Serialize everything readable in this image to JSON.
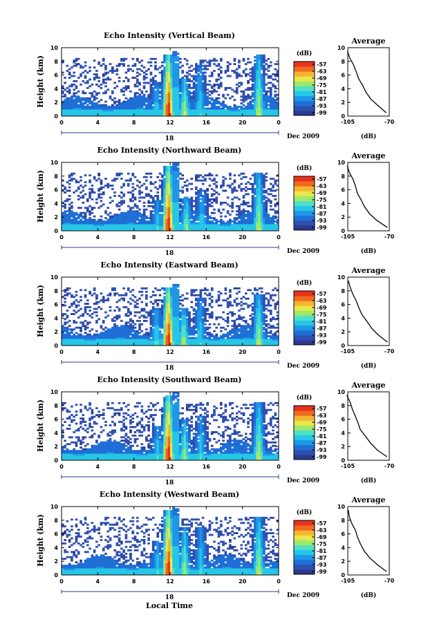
{
  "colors": {
    "scale": [
      "#2b3990",
      "#2f4fb0",
      "#1f6fd6",
      "#1f96e6",
      "#26c6e6",
      "#4fe0c8",
      "#9fe86a",
      "#e8e84a",
      "#f7b430",
      "#f06a20",
      "#e8321e"
    ],
    "background": "#ffffff",
    "axis": "#000000",
    "timeline": "#2b3990"
  },
  "chart_data": [
    {
      "type": "heatmap",
      "title": "Echo Intensity (Vertical Beam)",
      "ylabel": "Height (km)",
      "xlim": [
        0,
        24
      ],
      "ylim": [
        0,
        10
      ],
      "xticks": [
        "0",
        "4",
        "8",
        "12",
        "16",
        "20",
        "0"
      ],
      "yticks": [
        "0",
        "2",
        "4",
        "6",
        "8",
        "10"
      ],
      "date_label": "Dec 2009",
      "day_label": "18",
      "colorbar": {
        "unit": "(dB)",
        "ticks": [
          "-57",
          "-63",
          "-69",
          "-75",
          "-81",
          "-87",
          "-93",
          "-99"
        ]
      },
      "average": {
        "title": "Average",
        "xlabel": "(dB)",
        "xlim": [
          -105,
          -70
        ],
        "xticks": [
          "-105",
          "-70"
        ],
        "yticks": [
          "0",
          "2",
          "4",
          "6",
          "8",
          "10"
        ],
        "profile": [
          [
            0,
            -72
          ],
          [
            1,
            -79
          ],
          [
            2,
            -86
          ],
          [
            3,
            -90
          ],
          [
            4,
            -93
          ],
          [
            5,
            -96
          ],
          [
            6,
            -98
          ],
          [
            7,
            -100
          ],
          [
            8,
            -103
          ],
          [
            9,
            -105
          ]
        ]
      },
      "convective_cells": [
        {
          "t": 11.8,
          "top": 9.0,
          "strength": 1.0
        },
        {
          "t": 13.6,
          "top": 5.5,
          "strength": 0.6
        },
        {
          "t": 15.3,
          "top": 7.5,
          "strength": 0.4
        },
        {
          "t": 21.8,
          "top": 9.0,
          "strength": 0.6
        },
        {
          "t": 10.5,
          "top": 5.0,
          "strength": 0.4
        }
      ]
    },
    {
      "type": "heatmap",
      "title": "Echo Intensity (Northward Beam)",
      "ylabel": "Height (km)",
      "xlim": [
        0,
        24
      ],
      "ylim": [
        0,
        10
      ],
      "xticks": [
        "0",
        "4",
        "8",
        "12",
        "16",
        "20",
        "0"
      ],
      "yticks": [
        "0",
        "2",
        "4",
        "6",
        "8",
        "10"
      ],
      "date_label": "Dec 2009",
      "day_label": "18",
      "colorbar": {
        "unit": "(dB)",
        "ticks": [
          "-57",
          "-63",
          "-69",
          "-75",
          "-81",
          "-87",
          "-93",
          "-99"
        ]
      },
      "average": {
        "title": "Average",
        "xlabel": "(dB)",
        "xlim": [
          -105,
          -70
        ],
        "xticks": [
          "-105",
          "-70"
        ],
        "yticks": [
          "0",
          "2",
          "4",
          "6",
          "8",
          "10"
        ],
        "profile": [
          [
            0,
            -72
          ],
          [
            1,
            -80
          ],
          [
            2,
            -87
          ],
          [
            3,
            -91
          ],
          [
            4,
            -94
          ],
          [
            5,
            -97
          ],
          [
            6,
            -99
          ],
          [
            7,
            -101
          ],
          [
            8,
            -104
          ],
          [
            9,
            -106
          ]
        ]
      },
      "convective_cells": [
        {
          "t": 11.8,
          "top": 9.5,
          "strength": 1.0
        },
        {
          "t": 13.8,
          "top": 5.0,
          "strength": 0.55
        },
        {
          "t": 15.5,
          "top": 6.0,
          "strength": 0.4
        },
        {
          "t": 21.8,
          "top": 8.5,
          "strength": 0.6
        },
        {
          "t": 10.6,
          "top": 4.5,
          "strength": 0.4
        }
      ]
    },
    {
      "type": "heatmap",
      "title": "Echo Intensity (Eastward Beam)",
      "ylabel": "Height (km)",
      "xlim": [
        0,
        24
      ],
      "ylim": [
        0,
        10
      ],
      "xticks": [
        "0",
        "4",
        "8",
        "12",
        "16",
        "20",
        "0"
      ],
      "yticks": [
        "0",
        "2",
        "4",
        "6",
        "8",
        "10"
      ],
      "date_label": "Dec 2009",
      "day_label": "18",
      "colorbar": {
        "unit": "(dB)",
        "ticks": [
          "-57",
          "-63",
          "-69",
          "-75",
          "-81",
          "-87",
          "-93",
          "-99"
        ]
      },
      "average": {
        "title": "Average",
        "xlabel": "(dB)",
        "xlim": [
          -105,
          -70
        ],
        "xticks": [
          "-105",
          "-70"
        ],
        "yticks": [
          "0",
          "2",
          "4",
          "6",
          "8",
          "10"
        ],
        "profile": [
          [
            0,
            -71
          ],
          [
            1,
            -79
          ],
          [
            2,
            -85
          ],
          [
            3,
            -89
          ],
          [
            4,
            -93
          ],
          [
            5,
            -96
          ],
          [
            6,
            -98
          ],
          [
            7,
            -101
          ],
          [
            8,
            -103
          ],
          [
            9,
            -105
          ]
        ]
      },
      "convective_cells": [
        {
          "t": 11.8,
          "top": 8.5,
          "strength": 1.0
        },
        {
          "t": 13.5,
          "top": 5.5,
          "strength": 0.6
        },
        {
          "t": 15.3,
          "top": 7.0,
          "strength": 0.4
        },
        {
          "t": 21.8,
          "top": 7.5,
          "strength": 0.6
        },
        {
          "t": 10.5,
          "top": 5.5,
          "strength": 0.45
        }
      ]
    },
    {
      "type": "heatmap",
      "title": "Echo Intensity (Southward Beam)",
      "ylabel": "Height (km)",
      "xlim": [
        0,
        24
      ],
      "ylim": [
        0,
        10
      ],
      "xticks": [
        "0",
        "4",
        "8",
        "12",
        "16",
        "20",
        "0"
      ],
      "yticks": [
        "0",
        "2",
        "4",
        "6",
        "8",
        "10"
      ],
      "date_label": "Dec 2009",
      "day_label": "18",
      "colorbar": {
        "unit": "(dB)",
        "ticks": [
          "-57",
          "-63",
          "-69",
          "-75",
          "-81",
          "-87",
          "-93",
          "-99"
        ]
      },
      "average": {
        "title": "Average",
        "xlabel": "(dB)",
        "xlim": [
          -105,
          -70
        ],
        "xticks": [
          "-105",
          "-70"
        ],
        "yticks": [
          "0",
          "2",
          "4",
          "6",
          "8",
          "10"
        ],
        "profile": [
          [
            0,
            -72
          ],
          [
            1,
            -80
          ],
          [
            2,
            -86
          ],
          [
            3,
            -90
          ],
          [
            4,
            -94
          ],
          [
            5,
            -96
          ],
          [
            6,
            -99
          ],
          [
            7,
            -101
          ],
          [
            8,
            -103
          ],
          [
            9,
            -106
          ]
        ]
      },
      "convective_cells": [
        {
          "t": 11.8,
          "top": 9.5,
          "strength": 1.0
        },
        {
          "t": 13.6,
          "top": 6.0,
          "strength": 0.55
        },
        {
          "t": 15.4,
          "top": 6.5,
          "strength": 0.4
        },
        {
          "t": 21.8,
          "top": 8.5,
          "strength": 0.6
        },
        {
          "t": 10.6,
          "top": 5.0,
          "strength": 0.4
        }
      ]
    },
    {
      "type": "heatmap",
      "title": "Echo Intensity (Westward Beam)",
      "ylabel": "Height (km)",
      "xlabel": "Local Time",
      "xlim": [
        0,
        24
      ],
      "ylim": [
        0,
        10
      ],
      "xticks": [
        "0",
        "4",
        "8",
        "12",
        "16",
        "20",
        "0"
      ],
      "yticks": [
        "0",
        "2",
        "4",
        "6",
        "8",
        "10"
      ],
      "date_label": "Dec 2009",
      "day_label": "18",
      "colorbar": {
        "unit": "(dB)",
        "ticks": [
          "-57",
          "-63",
          "-69",
          "-75",
          "-81",
          "-87",
          "-93",
          "-99"
        ]
      },
      "average": {
        "title": "Average",
        "xlabel": "(dB)",
        "xlim": [
          -105,
          -70
        ],
        "xticks": [
          "-105",
          "-70"
        ],
        "yticks": [
          "0",
          "2",
          "4",
          "6",
          "8",
          "10"
        ],
        "profile": [
          [
            0,
            -72
          ],
          [
            1,
            -80
          ],
          [
            2,
            -86
          ],
          [
            3,
            -91
          ],
          [
            4,
            -94
          ],
          [
            5,
            -97
          ],
          [
            6,
            -99
          ],
          [
            7,
            -101
          ],
          [
            8,
            -104
          ],
          [
            9,
            -105
          ]
        ]
      },
      "convective_cells": [
        {
          "t": 11.8,
          "top": 9.5,
          "strength": 1.0
        },
        {
          "t": 13.6,
          "top": 7.0,
          "strength": 0.55
        },
        {
          "t": 15.4,
          "top": 7.0,
          "strength": 0.4
        },
        {
          "t": 21.8,
          "top": 8.5,
          "strength": 0.6
        },
        {
          "t": 10.6,
          "top": 5.0,
          "strength": 0.4
        }
      ]
    }
  ]
}
